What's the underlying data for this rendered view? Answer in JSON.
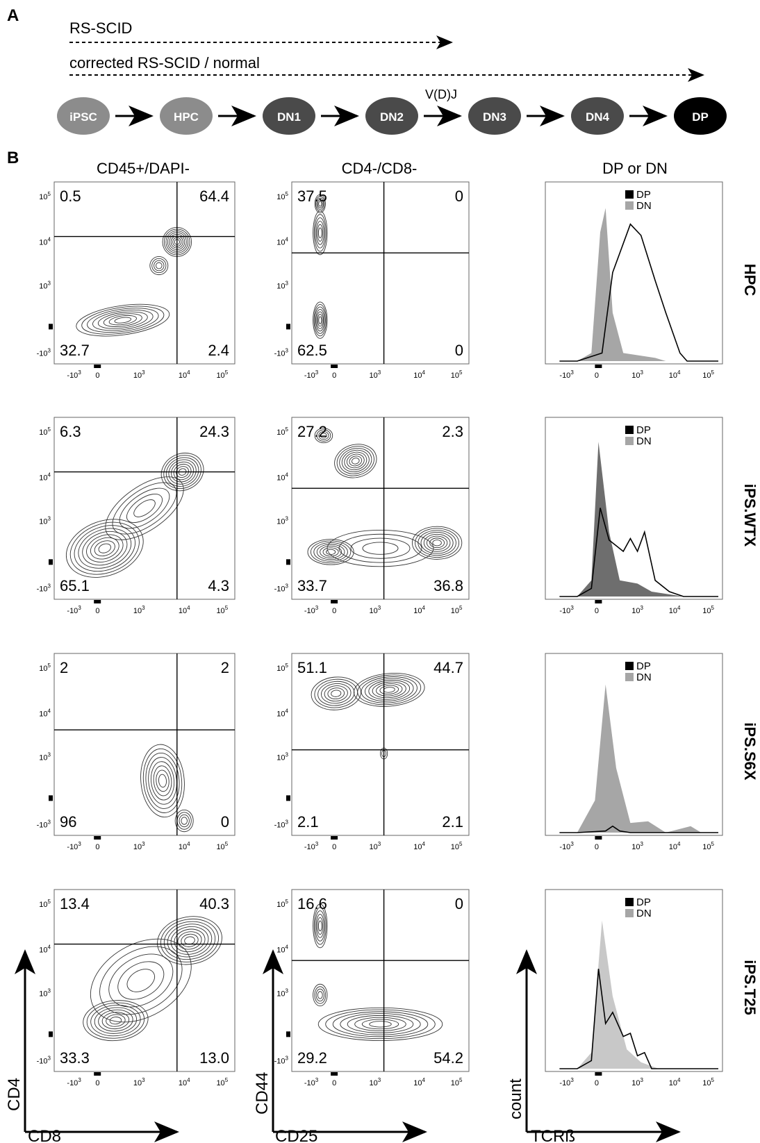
{
  "panel_labels": [
    "A",
    "B"
  ],
  "pathway": {
    "arrow_rs_scid": "RS-SCID",
    "arrow_corrected": "corrected RS-SCID / normal",
    "vdj_label": "V(D)J",
    "stages": [
      {
        "label": "iPSC",
        "color": "#8c8c8c"
      },
      {
        "label": "HPC",
        "color": "#8c8c8c"
      },
      {
        "label": "DN1",
        "color": "#4a4a4a"
      },
      {
        "label": "DN2",
        "color": "#4a4a4a"
      },
      {
        "label": "DN3",
        "color": "#4a4a4a"
      },
      {
        "label": "DN4",
        "color": "#4a4a4a"
      },
      {
        "label": "DP",
        "color": "#000000"
      }
    ]
  },
  "column_titles": [
    "CD45+/DAPI-",
    "CD4-/CD8-",
    "DP or DN"
  ],
  "row_labels": [
    "HPC",
    "iPS.WTX",
    "iPS.S6X",
    "iPS.T25"
  ],
  "axis_titles": {
    "col1_y": "CD4",
    "col1_x": "CD8",
    "col2_y": "CD44",
    "col2_x": "CD25",
    "col3_y": "count",
    "col3_x": "TCRß"
  },
  "tick_labels": {
    "flow_x": [
      "-10^3",
      "0",
      "10^3",
      "10^4",
      "10^5"
    ],
    "flow_y": [
      "10^5",
      "10^4",
      "10^3",
      "-10^3"
    ],
    "hist_x": [
      "-10^3",
      "0",
      "10^3",
      "10^4",
      "10^5"
    ]
  },
  "legend": {
    "dp": {
      "label": "DP",
      "color": "#000000"
    },
    "dn": {
      "label": "DN",
      "color": "#a6a6a6"
    }
  },
  "chart_data": [
    {
      "type": "scatter",
      "subtype": "flow-contour",
      "row": "HPC",
      "title": "CD45+/DAPI-",
      "xlabel": "CD8",
      "ylabel": "CD4",
      "quadrants": {
        "upper_left": "0.5",
        "upper_right": "64.4",
        "lower_left": "32.7",
        "lower_right": "2.4"
      }
    },
    {
      "type": "scatter",
      "subtype": "flow-contour",
      "row": "HPC",
      "title": "CD4-/CD8-",
      "xlabel": "CD25",
      "ylabel": "CD44",
      "quadrants": {
        "upper_left": "37.5",
        "upper_right": "0",
        "lower_left": "62.5",
        "lower_right": "0"
      }
    },
    {
      "type": "area",
      "subtype": "histogram-overlay",
      "row": "HPC",
      "title": "DP or DN",
      "xlabel": "TCRß",
      "ylabel": "count",
      "series": [
        {
          "name": "DP"
        },
        {
          "name": "DN"
        }
      ]
    },
    {
      "type": "scatter",
      "subtype": "flow-contour",
      "row": "iPS.WTX",
      "quadrants": {
        "upper_left": "6.3",
        "upper_right": "24.3",
        "lower_left": "65.1",
        "lower_right": "4.3"
      }
    },
    {
      "type": "scatter",
      "subtype": "flow-contour",
      "row": "iPS.WTX",
      "quadrants": {
        "upper_left": "27.2",
        "upper_right": "2.3",
        "lower_left": "33.7",
        "lower_right": "36.8"
      }
    },
    {
      "type": "area",
      "subtype": "histogram-overlay",
      "row": "iPS.WTX",
      "series": [
        {
          "name": "DP"
        },
        {
          "name": "DN"
        }
      ]
    },
    {
      "type": "scatter",
      "subtype": "flow-contour",
      "row": "iPS.S6X",
      "quadrants": {
        "upper_left": "2",
        "upper_right": "2",
        "lower_left": "96",
        "lower_right": "0"
      }
    },
    {
      "type": "scatter",
      "subtype": "flow-contour",
      "row": "iPS.S6X",
      "quadrants": {
        "upper_left": "51.1",
        "upper_right": "44.7",
        "lower_left": "2.1",
        "lower_right": "2.1"
      }
    },
    {
      "type": "area",
      "subtype": "histogram-overlay",
      "row": "iPS.S6X",
      "series": [
        {
          "name": "DP"
        },
        {
          "name": "DN"
        }
      ]
    },
    {
      "type": "scatter",
      "subtype": "flow-contour",
      "row": "iPS.T25",
      "quadrants": {
        "upper_left": "13.4",
        "upper_right": "40.3",
        "lower_left": "33.3",
        "lower_right": "13.0"
      }
    },
    {
      "type": "scatter",
      "subtype": "flow-contour",
      "row": "iPS.T25",
      "quadrants": {
        "upper_left": "16.6",
        "upper_right": "0",
        "lower_left": "29.2",
        "lower_right": "54.2"
      }
    },
    {
      "type": "area",
      "subtype": "histogram-overlay",
      "row": "iPS.T25",
      "series": [
        {
          "name": "DP"
        },
        {
          "name": "DN"
        }
      ]
    }
  ]
}
